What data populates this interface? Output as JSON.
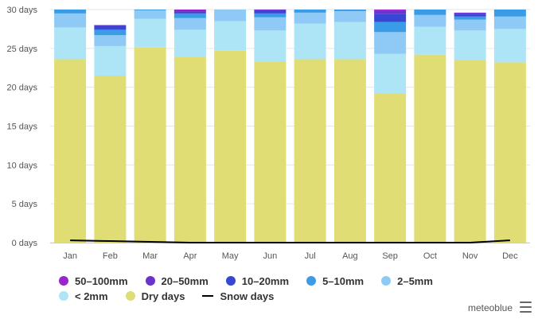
{
  "chart_data": {
    "type": "bar",
    "stacked": true,
    "categories": [
      "Jan",
      "Feb",
      "Mar",
      "Apr",
      "May",
      "Jun",
      "Jul",
      "Aug",
      "Sep",
      "Oct",
      "Nov",
      "Dec"
    ],
    "y_axis": {
      "ticks": [
        0,
        5,
        10,
        15,
        20,
        25,
        30
      ],
      "tick_labels": [
        "0 days",
        "5 days",
        "10 days",
        "15 days",
        "20 days",
        "25 days",
        "30 days"
      ],
      "ylim": [
        0,
        30
      ],
      "grid": true
    },
    "series": [
      {
        "name": "Dry days",
        "color": "#e1dd75",
        "values": [
          23.6,
          21.5,
          25.1,
          23.9,
          24.7,
          23.3,
          23.6,
          23.6,
          19.2,
          24.2,
          23.5,
          23.2
        ]
      },
      {
        "name": "< 2mm",
        "color": "#aee5f6",
        "values": [
          4.1,
          3.8,
          3.7,
          3.5,
          3.8,
          4.0,
          4.6,
          4.8,
          5.1,
          3.6,
          3.8,
          4.3
        ]
      },
      {
        "name": "2-5mm",
        "color": "#8ecaf5",
        "values": [
          1.8,
          1.4,
          1.1,
          1.5,
          1.5,
          1.7,
          1.4,
          1.4,
          2.8,
          1.5,
          1.4,
          1.6
        ]
      },
      {
        "name": "5-10mm",
        "color": "#3a9ce6",
        "values": [
          0.5,
          0.7,
          0.1,
          0.6,
          0.0,
          0.5,
          0.4,
          0.2,
          1.3,
          0.7,
          0.4,
          0.9
        ]
      },
      {
        "name": "10-20mm",
        "color": "#3747d4",
        "values": [
          0.0,
          0.5,
          0.0,
          0.2,
          0.0,
          0.3,
          0.0,
          0.0,
          1.0,
          0.0,
          0.3,
          0.0
        ]
      },
      {
        "name": "20-50mm",
        "color": "#6b33c9",
        "values": [
          0.0,
          0.1,
          0.0,
          0.2,
          0.0,
          0.2,
          0.0,
          0.0,
          0.4,
          0.0,
          0.2,
          0.0
        ]
      },
      {
        "name": "50-100mm",
        "color": "#9926cc",
        "values": [
          0.0,
          0.0,
          0.0,
          0.1,
          0.0,
          0.0,
          0.0,
          0.0,
          0.2,
          0.0,
          0.0,
          0.0
        ]
      }
    ],
    "line_series": {
      "name": "Snow days",
      "color": "#000000",
      "values": [
        0.3,
        0.2,
        0.1,
        0.0,
        0.0,
        0.0,
        0.0,
        0.0,
        0.0,
        0.0,
        0.0,
        0.3
      ]
    },
    "legend": {
      "placement": "bottom",
      "rows": [
        [
          "50-100mm",
          "20-50mm",
          "10-20mm",
          "5-10mm",
          "2-5mm"
        ],
        [
          "< 2mm",
          "Dry days",
          "Snow days"
        ]
      ]
    }
  },
  "legend_labels": {
    "l50_100": "50–100mm",
    "l20_50": "20–50mm",
    "l10_20": "10–20mm",
    "l5_10": "5–10mm",
    "l2_5": "2–5mm",
    "llt2": "< 2mm",
    "ldry": "Dry days",
    "lsnow": "Snow days"
  },
  "credit": "meteoblue",
  "menu_icon": "hamburger-menu-icon"
}
